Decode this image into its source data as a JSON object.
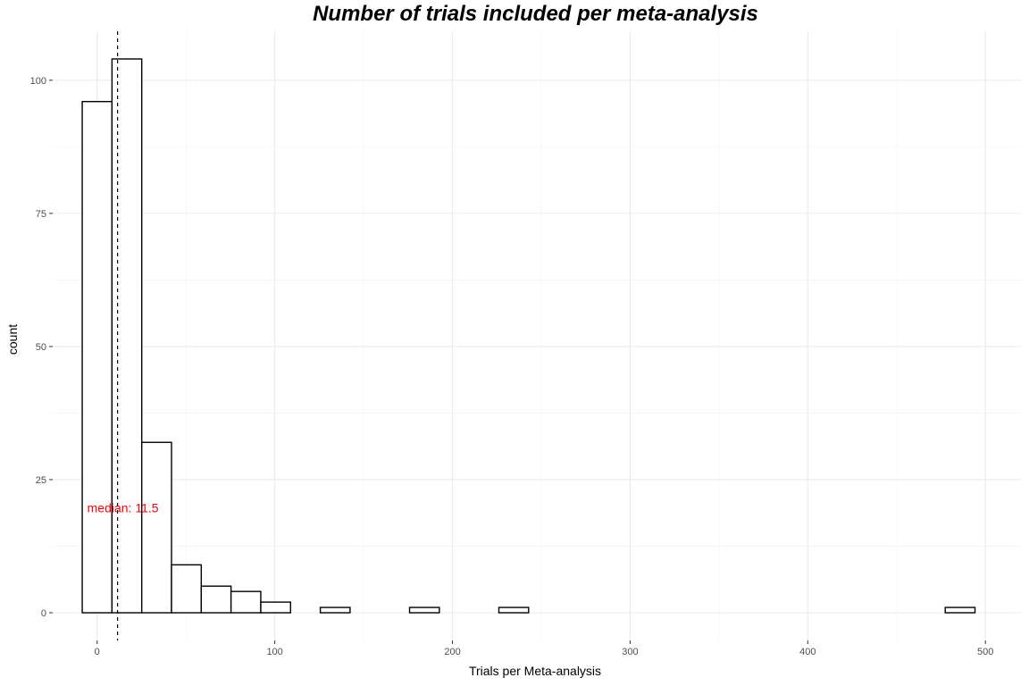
{
  "chart_data": {
    "type": "bar",
    "title": "Number of trials included per meta-analysis",
    "xlabel": "Trials per Meta-analysis",
    "ylabel": "count",
    "bin_width": 16.75,
    "bin_start": -8.375,
    "counts": [
      96,
      104,
      32,
      9,
      5,
      4,
      2,
      0,
      1,
      0,
      0,
      1,
      0,
      0,
      1,
      0,
      0,
      0,
      0,
      0,
      0,
      0,
      0,
      0,
      0,
      0,
      0,
      0,
      0,
      1
    ],
    "xlim": [
      -25,
      520
    ],
    "ylim": [
      -5.2,
      109.2
    ],
    "xticks": [
      0,
      100,
      200,
      300,
      400,
      500
    ],
    "yticks": [
      0,
      25,
      50,
      75,
      100
    ],
    "grid": true,
    "bar_fill": "#ffffff",
    "bar_stroke": "#000000",
    "median": 11.5,
    "median_label": "median: 11.5",
    "annotation_color": "#ff0000"
  }
}
